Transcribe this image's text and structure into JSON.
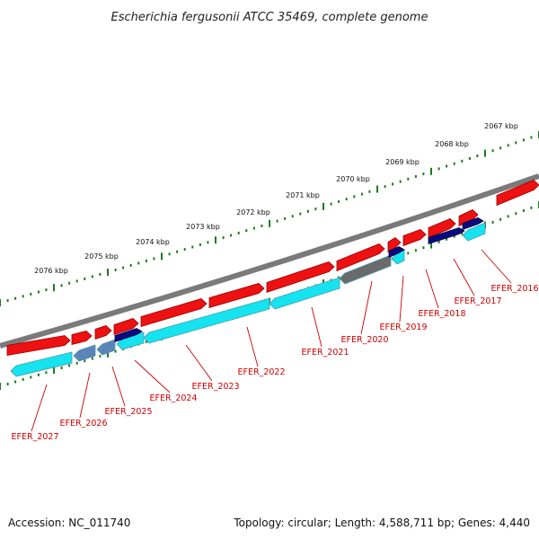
{
  "title": "Escherichia fergusonii ATCC 35469, complete genome",
  "footer": {
    "accession": "Accession: NC_011740",
    "summary": "Topology: circular; Length: 4,588,711 bp; Genes: 4,440"
  },
  "colors": {
    "backbone": "#7a7a7a",
    "ticks": "#1f7a1f",
    "cds": "#ee1111",
    "cds_edge": "#990000",
    "rna": "#16e3f0",
    "conserved": "#0a0a80",
    "pseudo": "#6a6a6a",
    "steel": "#5b84b8",
    "label": "#cc0000"
  },
  "scale_labels": [
    "2067 kbp",
    "2068 kbp",
    "2069 kbp",
    "2070 kbp",
    "2071 kbp",
    "2072 kbp",
    "2073 kbp",
    "2074 kbp",
    "2075 kbp",
    "2076 kbp"
  ],
  "gene_labels": [
    "EFER_2016",
    "EFER_2017",
    "EFER_2018",
    "EFER_2019",
    "EFER_2020",
    "EFER_2021",
    "EFER_2022",
    "EFER_2023",
    "EFER_2024",
    "EFER_2025",
    "EFER_2026",
    "EFER_2027"
  ]
}
